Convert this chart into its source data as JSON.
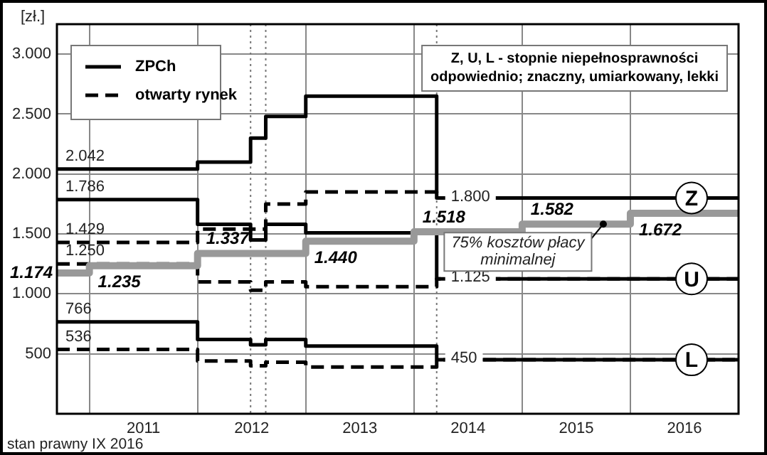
{
  "chart_data": {
    "type": "step",
    "ylabel": "[zł.]",
    "line_style": "solid",
    "grid": true,
    "legend": "top left",
    "xlim": [
      2010.7,
      2017
    ],
    "ylim": [
      0,
      3250
    ],
    "xticks": [
      {
        "value": 2011,
        "label": null
      },
      {
        "value": 2011.5,
        "label": "2011"
      },
      {
        "value": 2012,
        "label": null
      },
      {
        "value": 2012.5,
        "label": "2012"
      },
      {
        "value": 2013,
        "label": null
      },
      {
        "value": 2013.5,
        "label": "2013"
      },
      {
        "value": 2014,
        "label": null
      },
      {
        "value": 2014.5,
        "label": "2014"
      },
      {
        "value": 2015,
        "label": null
      },
      {
        "value": 2015.5,
        "label": "2015"
      },
      {
        "value": 2016,
        "label": null
      },
      {
        "value": 2016.5,
        "label": "2016"
      }
    ],
    "yticks": [
      500,
      {
        "value": 1000,
        "label": "1.000"
      },
      {
        "value": 1500,
        "label": "1.500"
      },
      {
        "value": 2000,
        "label": "2.000"
      },
      {
        "value": 2500,
        "label": "2.500"
      },
      {
        "value": 3000,
        "label": "3.000"
      }
    ],
    "series": [
      {
        "name": "ZPCh",
        "color": "#000000",
        "x": [
          2010.7,
          2012,
          2012.49,
          2012.63,
          2013,
          2014.21,
          2017
        ],
        "values": [
          2042,
          2100,
          2300,
          2480,
          2650,
          1800,
          1800
        ],
        "value_labels": [
          "2.042",
          null,
          null,
          null,
          null,
          "1.800",
          null
        ]
      },
      {
        "color": "#000000",
        "x": [
          2010.7,
          2012,
          2012.49,
          2012.63,
          2013,
          2014.21,
          2017
        ],
        "values": [
          1786,
          1580,
          1450,
          1580,
          1510,
          1125,
          1125
        ],
        "value_labels": [
          "1.786",
          null,
          null,
          null,
          null,
          "1.125",
          null
        ]
      },
      {
        "color": "#000000",
        "x": [
          2010.7,
          2012,
          2012.49,
          2012.63,
          2013,
          2014.21,
          2017
        ],
        "values": [
          766,
          620,
          575,
          620,
          565,
          450,
          450
        ],
        "value_labels": [
          "766",
          null,
          null,
          null,
          null,
          "450",
          null
        ]
      },
      {
        "name": "otwarty rynek",
        "color": "#000000",
        "line_style": "dashed",
        "x": [
          2010.7,
          2012,
          2012.49,
          2012.63,
          2013,
          2014.21,
          2017
        ],
        "values": [
          1429,
          1540,
          1540,
          1750,
          1850,
          1800,
          1800
        ],
        "value_labels": [
          "1.429",
          null,
          null,
          null,
          null,
          null,
          null
        ]
      },
      {
        "color": "#000000",
        "line_style": "dashed",
        "x": [
          2010.7,
          2012,
          2012.49,
          2012.63,
          2013,
          2014.21,
          2017
        ],
        "values": [
          1250,
          1100,
          1030,
          1100,
          1060,
          1125,
          1125
        ],
        "value_labels": [
          "1.250",
          null,
          null,
          null,
          null,
          null,
          null
        ]
      },
      {
        "color": "#000000",
        "line_style": "dashed",
        "x": [
          2010.7,
          2012,
          2012.49,
          2012.63,
          2013,
          2014.21,
          2017
        ],
        "values": [
          536,
          440,
          400,
          430,
          390,
          450,
          450
        ],
        "value_labels": [
          "536",
          null,
          null,
          null,
          null,
          null,
          null
        ]
      },
      {
        "color": "#999999",
        "x": [
          2010.7,
          2011,
          2012,
          2013,
          2014,
          2015,
          2016,
          2017
        ],
        "values": [
          1174,
          1235,
          1337,
          1440,
          1518,
          1582,
          1672,
          1672
        ],
        "value_labels": [
          "1.174",
          "1.235",
          "1.337",
          "1.440",
          "1.518",
          "1.582",
          "1.672",
          null
        ]
      }
    ],
    "ref_lines": [
      {
        "axis": "x",
        "value": 2012.49,
        "line_style": "dotted"
      },
      {
        "axis": "x",
        "value": 2012.63,
        "line_style": "dotted"
      },
      {
        "axis": "x",
        "value": 2014.21,
        "line_style": "dotted"
      }
    ],
    "annotations": [
      "Z",
      "U",
      "L",
      {
        "text": "75% kosztów płacy minimalnej",
        "x": 2015.75,
        "y": 1582
      },
      "Z, U, L - stopnie niepełnosprawności odpowiednio; znaczny, umiarkowany, lekki",
      "stan prawny IX 2016"
    ]
  }
}
